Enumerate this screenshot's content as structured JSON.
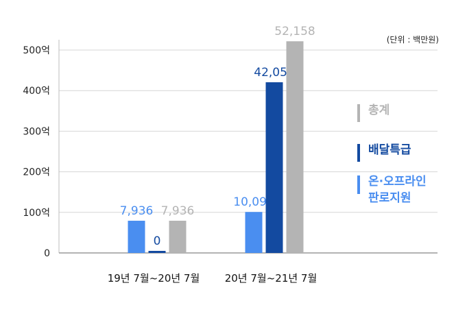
{
  "chart_data": {
    "type": "bar",
    "unit_note": "(단위 : 백만원)",
    "categories": [
      "19년 7월~20년 7월",
      "20년 7월~21년 7월"
    ],
    "series": [
      {
        "name": "온·오프라인 판로지원",
        "values": [
          7936,
          10099
        ],
        "labels": [
          "7,936",
          "10,099"
        ],
        "color": "#4a8ef0"
      },
      {
        "name": "배달특급",
        "values": [
          0,
          42059
        ],
        "labels": [
          "0",
          "42,059"
        ],
        "color": "#134aa0"
      },
      {
        "name": "총계",
        "values": [
          7936,
          52158
        ],
        "labels": [
          "7,936",
          "52,158"
        ],
        "color": "#b4b4b4"
      }
    ],
    "y_ticks": [
      {
        "value": 0,
        "label": "0"
      },
      {
        "value": 10000,
        "label": "100억"
      },
      {
        "value": 20000,
        "label": "200억"
      },
      {
        "value": 30000,
        "label": "300억"
      },
      {
        "value": 40000,
        "label": "400억"
      },
      {
        "value": 50000,
        "label": "500억"
      }
    ],
    "ylim": [
      0,
      55000
    ],
    "grid": true,
    "legend_position": "right",
    "legend": [
      {
        "lines": [
          "총계"
        ],
        "color": "#b4b4b4"
      },
      {
        "lines": [
          "배달특급"
        ],
        "color": "#134aa0"
      },
      {
        "lines": [
          "온·오프라인",
          "판로지원"
        ],
        "color": "#4a8ef0"
      }
    ]
  }
}
